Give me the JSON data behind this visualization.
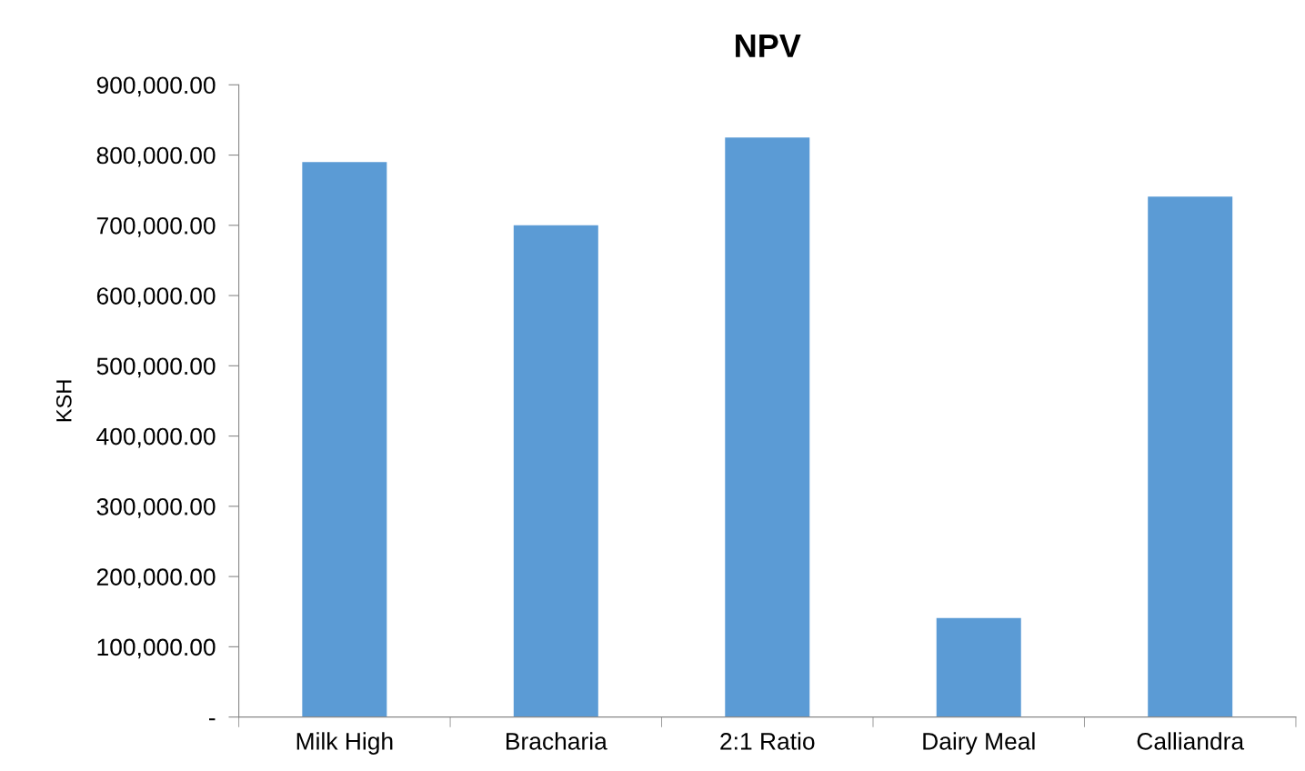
{
  "chart_data": {
    "type": "bar",
    "title": "NPV",
    "ylabel": "KSH",
    "categories": [
      "Milk High",
      "Bracharia",
      "2:1 Ratio",
      "Dairy Meal",
      "Calliandra"
    ],
    "values": [
      790000,
      700000,
      825000,
      141000,
      741000
    ],
    "color": "#5b9bd5",
    "ylim": [
      0,
      900000
    ],
    "yticks": [
      {
        "value": 0,
        "label": "-"
      },
      {
        "value": 100000,
        "label": "100,000.00"
      },
      {
        "value": 200000,
        "label": "200,000.00"
      },
      {
        "value": 300000,
        "label": "300,000.00"
      },
      {
        "value": 400000,
        "label": "400,000.00"
      },
      {
        "value": 500000,
        "label": "500,000.00"
      },
      {
        "value": 600000,
        "label": "600,000.00"
      },
      {
        "value": 700000,
        "label": "700,000.00"
      },
      {
        "value": 800000,
        "label": "800,000.00"
      },
      {
        "value": 900000,
        "label": "900,000.00"
      }
    ],
    "grid": false,
    "legend": false
  }
}
